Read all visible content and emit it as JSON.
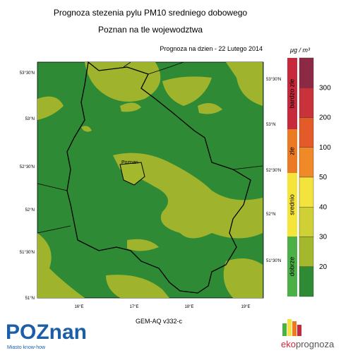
{
  "header": {
    "title": "Prognoza stezenia pylu PM10 sredniego dobowego",
    "subtitle": "Poznan na tle wojewodztwa",
    "date": "Prognoza na dzien -  22 Lutego 2014"
  },
  "map": {
    "left_labels": [
      "53°30'N",
      "53°N",
      "52°30'N",
      "52°N",
      "51°30'N",
      "51°N"
    ],
    "right_labels": [
      "53°30'N",
      "53°N",
      "52°30'N",
      "52°N",
      "51°30'N"
    ],
    "bottom_labels": [
      "16°E",
      "17°E",
      "18°E",
      "19°E"
    ],
    "city": "Poznan",
    "model": "GEM-AQ v332-c"
  },
  "colorbar": {
    "unit": "μg / m³",
    "levels": [
      "300",
      "200",
      "100",
      "50",
      "40",
      "30",
      "20"
    ],
    "colors": [
      "#8c2a45",
      "#c8323a",
      "#e45a28",
      "#f08a28",
      "#f3e33c",
      "#cfd035",
      "#a4b82e",
      "#2f8a35"
    ],
    "categories": [
      {
        "label": "bardzo zle",
        "color": "#c8283c"
      },
      {
        "label": "zle",
        "color": "#ec7a22"
      },
      {
        "label": "srednio",
        "color": "#f5e43a"
      },
      {
        "label": "dobrze",
        "color": "#4caf48"
      }
    ]
  },
  "footer": {
    "logo": "POZnan",
    "tagline": "Miasto know-how",
    "brand_prefix": "eko",
    "brand_suffix": "prognoza"
  }
}
